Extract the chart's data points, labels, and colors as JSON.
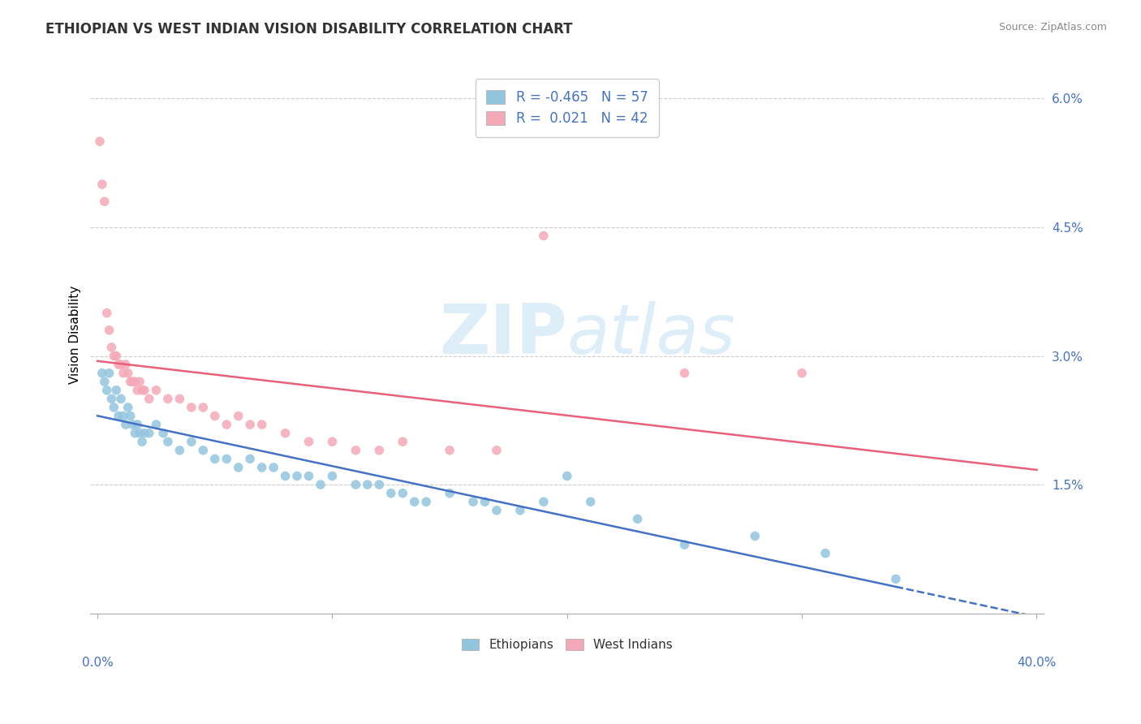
{
  "title": "ETHIOPIAN VS WEST INDIAN VISION DISABILITY CORRELATION CHART",
  "source": "Source: ZipAtlas.com",
  "ylabel": "Vision Disability",
  "ylabel_right_ticks": [
    "1.5%",
    "3.0%",
    "4.5%",
    "6.0%"
  ],
  "ylabel_right_vals": [
    0.015,
    0.03,
    0.045,
    0.06
  ],
  "xlim": [
    0.0,
    0.4
  ],
  "ylim": [
    0.0,
    0.065
  ],
  "R_ethiopian": -0.465,
  "N_ethiopian": 57,
  "R_west_indian": 0.021,
  "N_west_indian": 42,
  "color_ethiopian": "#92C5DE",
  "color_west_indian": "#F4A9B8",
  "watermark_zip": "ZIP",
  "watermark_atlas": "atlas",
  "legend_ethiopians": "Ethiopians",
  "legend_west_indians": "West Indians",
  "ethiopian_points": [
    [
      0.002,
      0.028
    ],
    [
      0.003,
      0.027
    ],
    [
      0.004,
      0.026
    ],
    [
      0.005,
      0.028
    ],
    [
      0.006,
      0.025
    ],
    [
      0.007,
      0.024
    ],
    [
      0.008,
      0.026
    ],
    [
      0.009,
      0.023
    ],
    [
      0.01,
      0.025
    ],
    [
      0.011,
      0.023
    ],
    [
      0.012,
      0.022
    ],
    [
      0.013,
      0.024
    ],
    [
      0.014,
      0.023
    ],
    [
      0.015,
      0.022
    ],
    [
      0.016,
      0.021
    ],
    [
      0.017,
      0.022
    ],
    [
      0.018,
      0.021
    ],
    [
      0.019,
      0.02
    ],
    [
      0.02,
      0.021
    ],
    [
      0.022,
      0.021
    ],
    [
      0.025,
      0.022
    ],
    [
      0.028,
      0.021
    ],
    [
      0.03,
      0.02
    ],
    [
      0.035,
      0.019
    ],
    [
      0.04,
      0.02
    ],
    [
      0.045,
      0.019
    ],
    [
      0.05,
      0.018
    ],
    [
      0.055,
      0.018
    ],
    [
      0.06,
      0.017
    ],
    [
      0.065,
      0.018
    ],
    [
      0.07,
      0.017
    ],
    [
      0.075,
      0.017
    ],
    [
      0.08,
      0.016
    ],
    [
      0.085,
      0.016
    ],
    [
      0.09,
      0.016
    ],
    [
      0.095,
      0.015
    ],
    [
      0.1,
      0.016
    ],
    [
      0.11,
      0.015
    ],
    [
      0.115,
      0.015
    ],
    [
      0.12,
      0.015
    ],
    [
      0.125,
      0.014
    ],
    [
      0.13,
      0.014
    ],
    [
      0.135,
      0.013
    ],
    [
      0.14,
      0.013
    ],
    [
      0.15,
      0.014
    ],
    [
      0.16,
      0.013
    ],
    [
      0.165,
      0.013
    ],
    [
      0.17,
      0.012
    ],
    [
      0.18,
      0.012
    ],
    [
      0.19,
      0.013
    ],
    [
      0.2,
      0.016
    ],
    [
      0.21,
      0.013
    ],
    [
      0.23,
      0.011
    ],
    [
      0.25,
      0.008
    ],
    [
      0.28,
      0.009
    ],
    [
      0.31,
      0.007
    ],
    [
      0.34,
      0.004
    ]
  ],
  "west_indian_points": [
    [
      0.001,
      0.055
    ],
    [
      0.002,
      0.05
    ],
    [
      0.003,
      0.048
    ],
    [
      0.004,
      0.035
    ],
    [
      0.005,
      0.033
    ],
    [
      0.006,
      0.031
    ],
    [
      0.007,
      0.03
    ],
    [
      0.008,
      0.03
    ],
    [
      0.009,
      0.029
    ],
    [
      0.01,
      0.029
    ],
    [
      0.011,
      0.028
    ],
    [
      0.012,
      0.029
    ],
    [
      0.013,
      0.028
    ],
    [
      0.014,
      0.027
    ],
    [
      0.015,
      0.027
    ],
    [
      0.016,
      0.027
    ],
    [
      0.017,
      0.026
    ],
    [
      0.018,
      0.027
    ],
    [
      0.019,
      0.026
    ],
    [
      0.02,
      0.026
    ],
    [
      0.022,
      0.025
    ],
    [
      0.025,
      0.026
    ],
    [
      0.03,
      0.025
    ],
    [
      0.035,
      0.025
    ],
    [
      0.04,
      0.024
    ],
    [
      0.045,
      0.024
    ],
    [
      0.05,
      0.023
    ],
    [
      0.055,
      0.022
    ],
    [
      0.06,
      0.023
    ],
    [
      0.065,
      0.022
    ],
    [
      0.07,
      0.022
    ],
    [
      0.08,
      0.021
    ],
    [
      0.09,
      0.02
    ],
    [
      0.1,
      0.02
    ],
    [
      0.11,
      0.019
    ],
    [
      0.12,
      0.019
    ],
    [
      0.13,
      0.02
    ],
    [
      0.15,
      0.019
    ],
    [
      0.17,
      0.019
    ],
    [
      0.19,
      0.044
    ],
    [
      0.25,
      0.028
    ],
    [
      0.3,
      0.028
    ]
  ]
}
